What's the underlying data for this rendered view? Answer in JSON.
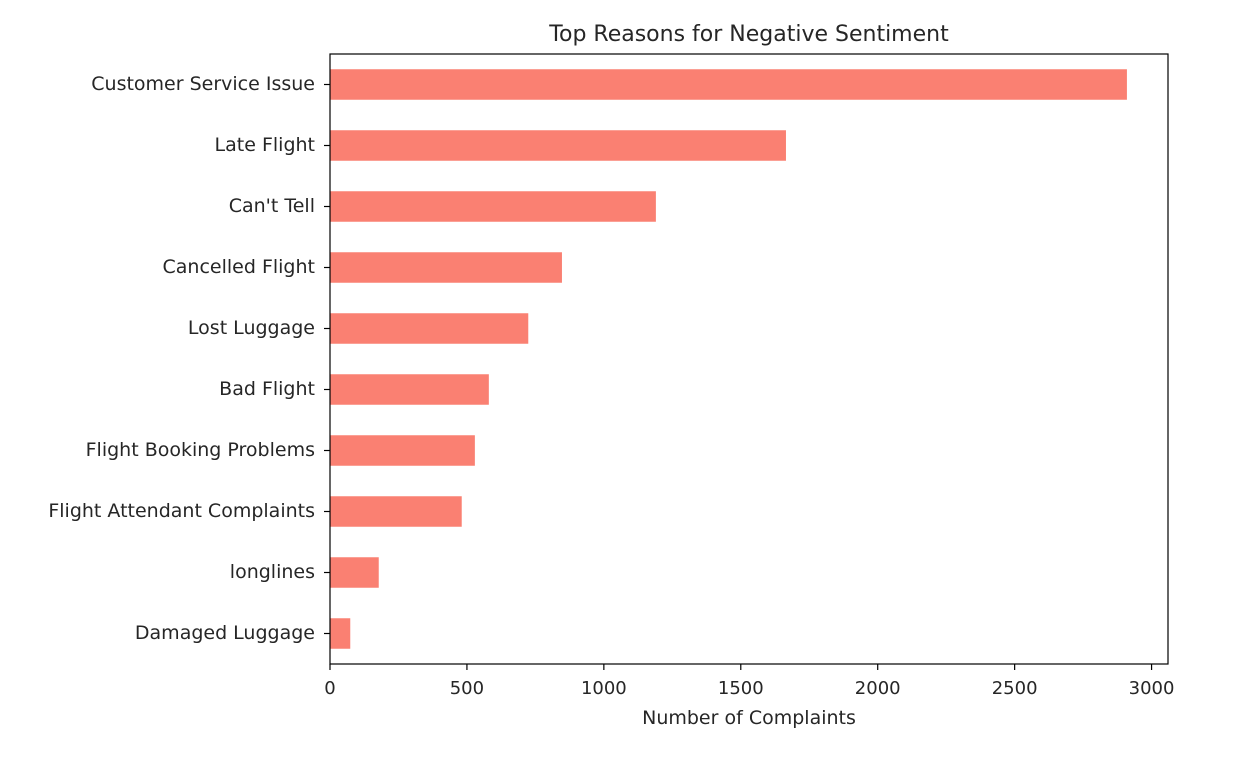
{
  "chart_data": {
    "type": "bar",
    "orientation": "horizontal",
    "title": "Top Reasons for Negative Sentiment",
    "xlabel": "Number of Complaints",
    "ylabel": "",
    "categories": [
      "Customer Service Issue",
      "Late Flight",
      "Can't Tell",
      "Cancelled Flight",
      "Lost Luggage",
      "Bad Flight",
      "Flight Booking Problems",
      "Flight Attendant Complaints",
      "longlines",
      "Damaged Luggage"
    ],
    "values": [
      2910,
      1665,
      1190,
      847,
      724,
      580,
      529,
      481,
      178,
      74
    ],
    "xlim": [
      0,
      3060
    ],
    "xticks": [
      0,
      500,
      1000,
      1500,
      2000,
      2500,
      3000
    ],
    "grid": false,
    "legend": "none",
    "bar_color": "#fa8072"
  }
}
